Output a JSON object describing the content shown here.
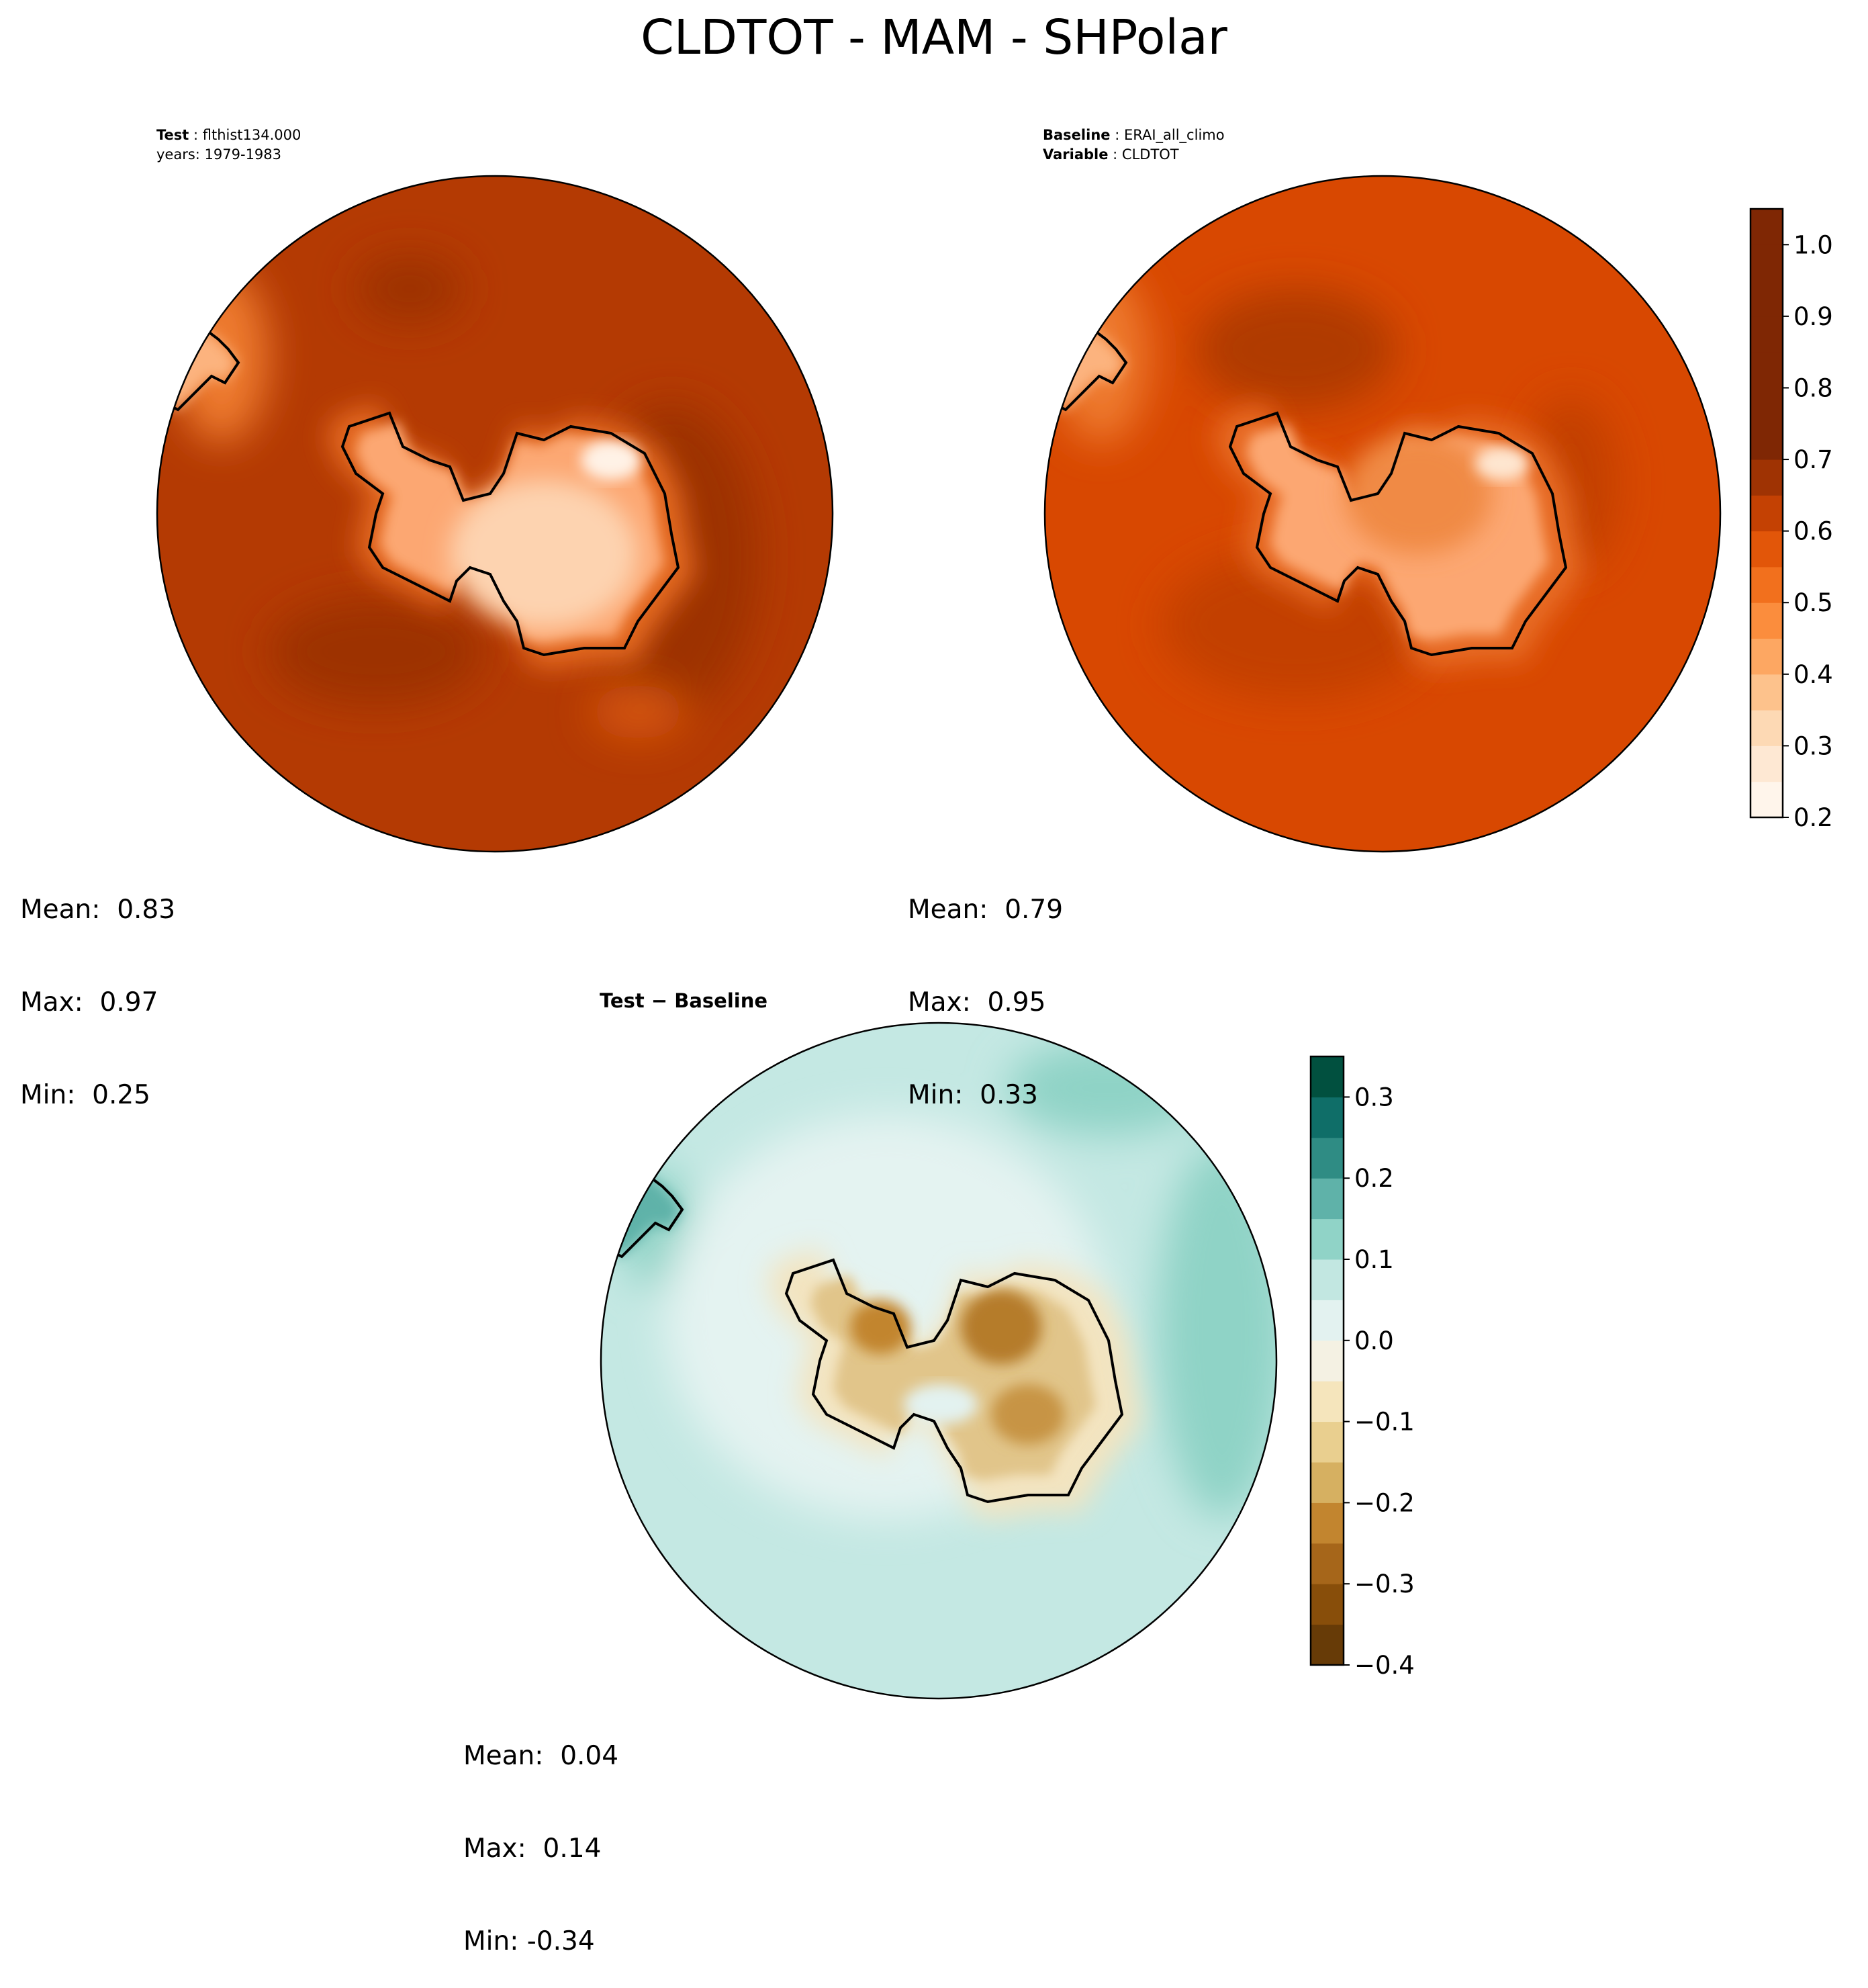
{
  "title": "CLDTOT - MAM - SHPolar",
  "panels": {
    "test": {
      "label1": "Test",
      "value1": "flthist134.000",
      "line2": "years: 1979-1983",
      "stats": {
        "mean": "Mean:  0.83",
        "max": "Max:  0.97",
        "min": "Min:  0.25"
      }
    },
    "baseline": {
      "label1": "Baseline",
      "value1": "ERAI_all_climo",
      "label2": "Variable",
      "value2": "CLDTOT",
      "stats": {
        "mean": "Mean:  0.79",
        "max": "Max:  0.95",
        "min": "Min:  0.33"
      }
    },
    "diff": {
      "title_left": "Test",
      "title_sep": " − ",
      "title_right": "Baseline",
      "stats": {
        "mean": "Mean:  0.04",
        "max": "Max:  0.14",
        "min": "Min: -0.34"
      }
    }
  },
  "colors": {
    "ocean_test": "#b43a03",
    "ocean_test_dark": "#9d3004",
    "ocean_base": "#d84801",
    "ocean_base_dark": "#b03b03",
    "diff_ocean": "#c4e8e3",
    "diff_light": "#e4f3f1",
    "diff_strong": "#8fd3c6",
    "coast": "#000000"
  },
  "chart_data": [
    {
      "type": "heatmap",
      "name": "test",
      "projection": "south-polar stereographic",
      "colormap": "Oranges",
      "stats": {
        "mean": 0.83,
        "max": 0.97,
        "min": 0.25
      }
    },
    {
      "type": "heatmap",
      "name": "baseline",
      "projection": "south-polar stereographic",
      "colormap": "Oranges",
      "stats": {
        "mean": 0.79,
        "max": 0.95,
        "min": 0.33
      },
      "colorbar": {
        "range": [
          0.2,
          1.05
        ],
        "boundaries": [
          0.2,
          0.25,
          0.3,
          0.35,
          0.4,
          0.45,
          0.5,
          0.55,
          0.6,
          0.65,
          0.7,
          0.75,
          0.8,
          0.85,
          0.9,
          0.95,
          1.0,
          1.05
        ],
        "colors": [
          "#fff5eb",
          "#fee8d3",
          "#fdd9b4",
          "#fdc28c",
          "#fda762",
          "#fb8d3d",
          "#f2701d",
          "#e25609",
          "#c44103",
          "#9f3303",
          "#7f2704",
          "#7f2704",
          "#7f2704",
          "#7f2704",
          "#7f2704",
          "#7f2704",
          "#7f2704"
        ],
        "tick_values": [
          0.2,
          0.3,
          0.4,
          0.5,
          0.6,
          0.7,
          0.8,
          0.9,
          1.0
        ],
        "tick_labels": [
          "0.2",
          "0.3",
          "0.4",
          "0.5",
          "0.6",
          "0.7",
          "0.8",
          "0.9",
          "1.0"
        ]
      }
    },
    {
      "type": "heatmap",
      "name": "difference",
      "projection": "south-polar stereographic",
      "colormap": "BrBG",
      "stats": {
        "mean": 0.04,
        "max": 0.14,
        "min": -0.34
      },
      "colorbar": {
        "range": [
          -0.4,
          0.35
        ],
        "boundaries": [
          -0.4,
          -0.35,
          -0.3,
          -0.25,
          -0.2,
          -0.15,
          -0.1,
          -0.05,
          0.0,
          0.05,
          0.1,
          0.15,
          0.2,
          0.25,
          0.3,
          0.35
        ],
        "colors": [
          "#673b07",
          "#884e0a",
          "#a6661a",
          "#c2852f",
          "#d6b061",
          "#e9cf8f",
          "#f5e5bc",
          "#f4f1e3",
          "#e3f2f0",
          "#c2e7e1",
          "#90d3c7",
          "#5fb2a9",
          "#2f8c84",
          "#0f6e68",
          "#01503f"
        ],
        "tick_values": [
          -0.4,
          -0.3,
          -0.2,
          -0.1,
          0.0,
          0.1,
          0.2,
          0.3
        ],
        "tick_labels": [
          "−0.4",
          "−0.3",
          "−0.2",
          "−0.1",
          "0.0",
          "0.1",
          "0.2",
          "0.3"
        ]
      }
    }
  ]
}
